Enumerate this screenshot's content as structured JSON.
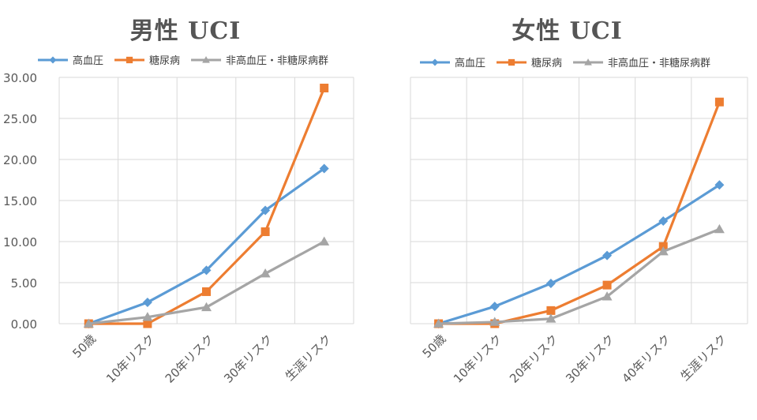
{
  "colors": {
    "hypertension": "#5B9BD5",
    "diabetes": "#ED7D31",
    "neither": "#A5A5A5",
    "grid": "#D9D9D9",
    "axis_text": "#595959"
  },
  "chart_data": [
    {
      "type": "line",
      "title": "男性 UCI",
      "categories": [
        "50歳",
        "10年リスク",
        "20年リスク",
        "30年リスク",
        "生涯リスク"
      ],
      "ylim": [
        0,
        30
      ],
      "yticks": [
        "0.00",
        "5.00",
        "10.00",
        "15.00",
        "20.00",
        "25.00",
        "30.00"
      ],
      "grid": true,
      "legend": "top",
      "series": [
        {
          "name": "高血圧",
          "marker": "diamond",
          "color_key": "hypertension",
          "values": [
            0.0,
            2.6,
            6.5,
            13.8,
            18.9
          ]
        },
        {
          "name": "糖尿病",
          "marker": "square",
          "color_key": "diabetes",
          "values": [
            0.0,
            0.0,
            3.9,
            11.2,
            28.7
          ]
        },
        {
          "name": "非高血圧・非糖尿病群",
          "marker": "triangle",
          "color_key": "neither",
          "values": [
            0.0,
            0.8,
            2.0,
            6.1,
            10.0
          ]
        }
      ]
    },
    {
      "type": "line",
      "title": "女性 UCI",
      "categories": [
        "50歳",
        "10年リスク",
        "20年リスク",
        "30年リスク",
        "40年リスク",
        "生涯リスク"
      ],
      "ylim": [
        0,
        30
      ],
      "yticks": [],
      "grid": true,
      "legend": "top",
      "series": [
        {
          "name": "高血圧",
          "marker": "diamond",
          "color_key": "hypertension",
          "values": [
            0.0,
            2.1,
            4.9,
            8.3,
            12.5,
            16.9
          ]
        },
        {
          "name": "糖尿病",
          "marker": "square",
          "color_key": "diabetes",
          "values": [
            0.0,
            0.0,
            1.6,
            4.7,
            9.4,
            27.0
          ]
        },
        {
          "name": "非高血圧・非糖尿病群",
          "marker": "triangle",
          "color_key": "neither",
          "values": [
            0.0,
            0.2,
            0.6,
            3.3,
            8.8,
            11.5
          ]
        }
      ]
    }
  ]
}
